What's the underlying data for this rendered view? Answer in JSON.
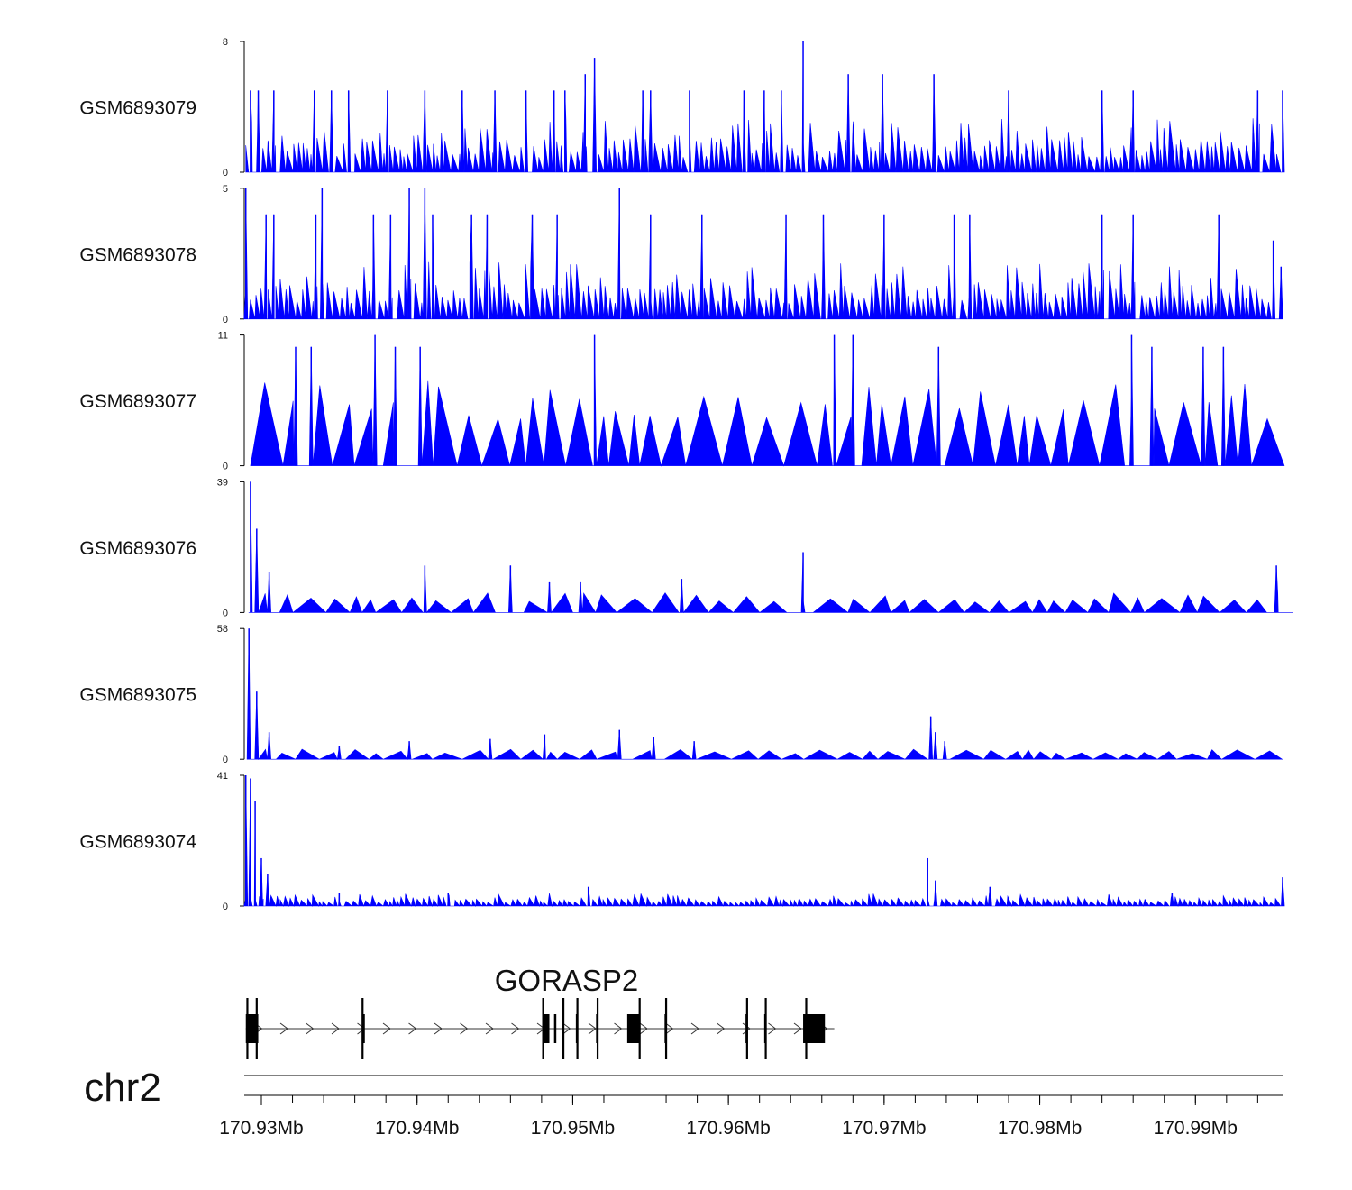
{
  "chart_data": {
    "type": "area",
    "title": "",
    "series_color": "#0000ff",
    "chromosome": "chr2",
    "xlim_mb": [
      170.9289,
      170.9956
    ],
    "x_ticks_mb": [
      170.93,
      170.94,
      170.95,
      170.96,
      170.97,
      170.98,
      170.99
    ],
    "x_tick_labels": [
      "170.93Mb",
      "170.94Mb",
      "170.95Mb",
      "170.96Mb",
      "170.97Mb",
      "170.98Mb",
      "170.99Mb"
    ],
    "tracks": [
      {
        "name": "GSM6893079",
        "ymin": 0,
        "ymax": 8,
        "ymin_label": "0",
        "ymax_label": "8",
        "peaks": [
          [
            170.9293,
            5
          ],
          [
            170.9298,
            5
          ],
          [
            170.9308,
            5
          ],
          [
            170.9334,
            5
          ],
          [
            170.9345,
            5
          ],
          [
            170.9356,
            5
          ],
          [
            170.9381,
            5
          ],
          [
            170.9405,
            5
          ],
          [
            170.9429,
            5
          ],
          [
            170.945,
            5
          ],
          [
            170.947,
            5
          ],
          [
            170.9488,
            5
          ],
          [
            170.9495,
            5
          ],
          [
            170.9508,
            6
          ],
          [
            170.9514,
            7
          ],
          [
            170.9545,
            5
          ],
          [
            170.955,
            5
          ],
          [
            170.9575,
            5
          ],
          [
            170.961,
            5
          ],
          [
            170.9623,
            5
          ],
          [
            170.9634,
            5
          ],
          [
            170.9648,
            8
          ],
          [
            170.9677,
            6
          ],
          [
            170.9699,
            6
          ],
          [
            170.9732,
            6
          ],
          [
            170.978,
            5
          ],
          [
            170.984,
            5
          ],
          [
            170.986,
            5
          ],
          [
            170.994,
            5
          ],
          [
            170.9956,
            5
          ]
        ],
        "floor": 1.5,
        "shape": "dense"
      },
      {
        "name": "GSM6893078",
        "ymin": 0,
        "ymax": 5,
        "ymin_label": "0",
        "ymax_label": "5",
        "peaks": [
          [
            170.929,
            5
          ],
          [
            170.9303,
            4
          ],
          [
            170.9308,
            4
          ],
          [
            170.9335,
            4
          ],
          [
            170.9339,
            5
          ],
          [
            170.9372,
            4
          ],
          [
            170.9383,
            4
          ],
          [
            170.9395,
            5
          ],
          [
            170.9405,
            5
          ],
          [
            170.941,
            4
          ],
          [
            170.9435,
            4
          ],
          [
            170.9445,
            4
          ],
          [
            170.9474,
            4
          ],
          [
            170.949,
            4
          ],
          [
            170.953,
            5
          ],
          [
            170.955,
            4
          ],
          [
            170.9583,
            4
          ],
          [
            170.9637,
            4
          ],
          [
            170.9661,
            4
          ],
          [
            170.97,
            4
          ],
          [
            170.9745,
            4
          ],
          [
            170.9755,
            4
          ],
          [
            170.984,
            4
          ],
          [
            170.986,
            4
          ],
          [
            170.9915,
            4
          ],
          [
            170.995,
            3
          ],
          [
            170.9955,
            2
          ]
        ],
        "floor": 1,
        "shape": "dense"
      },
      {
        "name": "GSM6893077",
        "ymin": 0,
        "ymax": 11,
        "ymin_label": "0",
        "ymax_label": "11",
        "peaks": [
          [
            170.9322,
            10
          ],
          [
            170.9332,
            10
          ],
          [
            170.9373,
            11
          ],
          [
            170.9386,
            10
          ],
          [
            170.9402,
            10
          ],
          [
            170.9514,
            11
          ],
          [
            170.9668,
            11
          ],
          [
            170.968,
            11
          ],
          [
            170.9735,
            10
          ],
          [
            170.9859,
            11
          ],
          [
            170.9872,
            10
          ],
          [
            170.9905,
            10
          ],
          [
            170.9918,
            10
          ]
        ],
        "floor": 5.5,
        "shape": "sparse"
      },
      {
        "name": "GSM6893076",
        "ymin": 0,
        "ymax": 39,
        "ymin_label": "0",
        "ymax_label": "39",
        "peaks": [
          [
            170.9293,
            39
          ],
          [
            170.9297,
            25
          ],
          [
            170.9305,
            12
          ],
          [
            170.9405,
            14
          ],
          [
            170.946,
            14
          ],
          [
            170.9485,
            9
          ],
          [
            170.9505,
            9
          ],
          [
            170.957,
            10
          ],
          [
            170.9648,
            18
          ],
          [
            170.9952,
            14
          ]
        ],
        "floor": 4.5,
        "shape": "sparse"
      },
      {
        "name": "GSM6893075",
        "ymin": 0,
        "ymax": 58,
        "ymin_label": "0",
        "ymax_label": "58",
        "peaks": [
          [
            170.9292,
            58
          ],
          [
            170.9297,
            30
          ],
          [
            170.9305,
            12
          ],
          [
            170.935,
            6
          ],
          [
            170.9395,
            8
          ],
          [
            170.9447,
            9
          ],
          [
            170.9482,
            11
          ],
          [
            170.953,
            13
          ],
          [
            170.9552,
            10
          ],
          [
            170.9578,
            8
          ],
          [
            170.973,
            19
          ],
          [
            170.9733,
            12
          ],
          [
            170.9739,
            8
          ]
        ],
        "floor": 3.5,
        "shape": "sparse"
      },
      {
        "name": "GSM6893074",
        "ymin": 0,
        "ymax": 41,
        "ymin_label": "0",
        "ymax_label": "41",
        "peaks": [
          [
            170.929,
            41
          ],
          [
            170.9293,
            40
          ],
          [
            170.9296,
            33
          ],
          [
            170.93,
            15
          ],
          [
            170.9304,
            10
          ],
          [
            170.935,
            4
          ],
          [
            170.942,
            4
          ],
          [
            170.951,
            6
          ],
          [
            170.9728,
            15
          ],
          [
            170.9733,
            8
          ],
          [
            170.9768,
            6
          ],
          [
            170.9885,
            4
          ],
          [
            170.9956,
            9
          ]
        ],
        "floor": 1.8,
        "shape": "dense"
      }
    ],
    "gene": {
      "name": "GORASP2",
      "strand": "+",
      "start_mb": 170.929,
      "end_mb": 170.9668,
      "exons_mb": [
        [
          170.929,
          170.9297
        ],
        [
          170.9296,
          170.9298
        ],
        [
          170.9365,
          170.9366
        ],
        [
          170.9481,
          170.9485
        ],
        [
          170.9488,
          170.9489
        ],
        [
          170.9493,
          170.9494
        ],
        [
          170.9502,
          170.9503
        ],
        [
          170.9515,
          170.9516
        ],
        [
          170.9535,
          170.9543
        ],
        [
          170.9541,
          170.9542
        ],
        [
          170.9559,
          170.956
        ],
        [
          170.9611,
          170.9612
        ],
        [
          170.9623,
          170.9624
        ],
        [
          170.9648,
          170.965
        ],
        [
          170.965,
          170.9662
        ]
      ]
    }
  }
}
